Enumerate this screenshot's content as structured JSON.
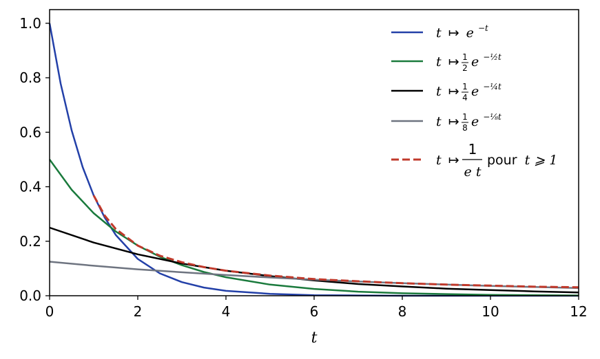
{
  "chart_data": {
    "type": "line",
    "title": "",
    "xlabel": "t",
    "ylabel": "",
    "xlim": [
      0,
      12
    ],
    "ylim": [
      0,
      1.05
    ],
    "x_ticks": [
      "0",
      "2",
      "4",
      "6",
      "8",
      "10",
      "12"
    ],
    "y_ticks": [
      "0.0",
      "0.2",
      "0.4",
      "0.6",
      "0.8",
      "1.0"
    ],
    "grid": false,
    "legend_position": "top-right",
    "series": [
      {
        "name": "t ↦ e^{-t}",
        "color": "#2340a8",
        "style": "solid",
        "x": [
          0,
          0.25,
          0.5,
          0.75,
          1,
          1.25,
          1.5,
          2,
          2.5,
          3,
          3.5,
          4,
          5,
          6,
          7,
          8,
          9,
          10,
          11,
          12
        ],
        "y": [
          1.0,
          0.779,
          0.607,
          0.472,
          0.368,
          0.287,
          0.223,
          0.135,
          0.082,
          0.05,
          0.03,
          0.018,
          0.007,
          0.002,
          0.001,
          0.0,
          0.0,
          0.0,
          0.0,
          0.0
        ]
      },
      {
        "name": "t ↦ ½ e^{-½ t}",
        "color": "#1a7a3c",
        "style": "solid",
        "x": [
          0,
          0.5,
          1,
          1.5,
          2,
          2.5,
          3,
          3.5,
          4,
          5,
          6,
          7,
          8,
          9,
          10,
          11,
          12
        ],
        "y": [
          0.5,
          0.389,
          0.303,
          0.236,
          0.184,
          0.143,
          0.112,
          0.087,
          0.068,
          0.041,
          0.025,
          0.015,
          0.009,
          0.006,
          0.003,
          0.002,
          0.001
        ]
      },
      {
        "name": "t ↦ ¼ e^{-¼ t}",
        "color": "#000000",
        "style": "solid",
        "x": [
          0,
          1,
          2,
          3,
          4,
          5,
          6,
          7,
          8,
          9,
          10,
          11,
          12
        ],
        "y": [
          0.25,
          0.195,
          0.152,
          0.118,
          0.092,
          0.072,
          0.056,
          0.043,
          0.034,
          0.026,
          0.021,
          0.016,
          0.012
        ]
      },
      {
        "name": "t ↦ ⅛ e^{-⅛ t}",
        "color": "#6e7480",
        "style": "solid",
        "x": [
          0,
          1,
          2,
          3,
          4,
          5,
          6,
          7,
          8,
          9,
          10,
          11,
          12
        ],
        "y": [
          0.125,
          0.11,
          0.097,
          0.086,
          0.076,
          0.067,
          0.059,
          0.052,
          0.046,
          0.041,
          0.036,
          0.032,
          0.028
        ]
      },
      {
        "name": "t ↦ 1/(e t) pour t ⩾ 1",
        "color": "#c0392b",
        "style": "dashed",
        "x": [
          1,
          1.25,
          1.5,
          2,
          2.5,
          3,
          3.5,
          4,
          5,
          6,
          7,
          8,
          9,
          10,
          11,
          12
        ],
        "y": [
          0.368,
          0.294,
          0.245,
          0.184,
          0.147,
          0.123,
          0.105,
          0.092,
          0.074,
          0.061,
          0.053,
          0.046,
          0.041,
          0.037,
          0.033,
          0.031
        ]
      }
    ],
    "legend": {
      "entries": [
        {
          "prefix": "t",
          "arrow": "↦",
          "rest": "e",
          "sup": "−t"
        },
        {
          "prefix": "t",
          "arrow": "↦",
          "frac_num": "1",
          "frac_den": "2",
          "rest": "e",
          "sup": "−½t"
        },
        {
          "prefix": "t",
          "arrow": "↦",
          "frac_num": "1",
          "frac_den": "4",
          "rest": "e",
          "sup": "−¼t"
        },
        {
          "prefix": "t",
          "arrow": "↦",
          "frac_num": "1",
          "frac_den": "8",
          "rest": "e",
          "sup": "−⅛t"
        },
        {
          "prefix": "t",
          "arrow": "↦",
          "frac_num": "1",
          "frac_den": "e t",
          "tail": "pour",
          "cond": "t ⩾ 1"
        }
      ]
    }
  }
}
